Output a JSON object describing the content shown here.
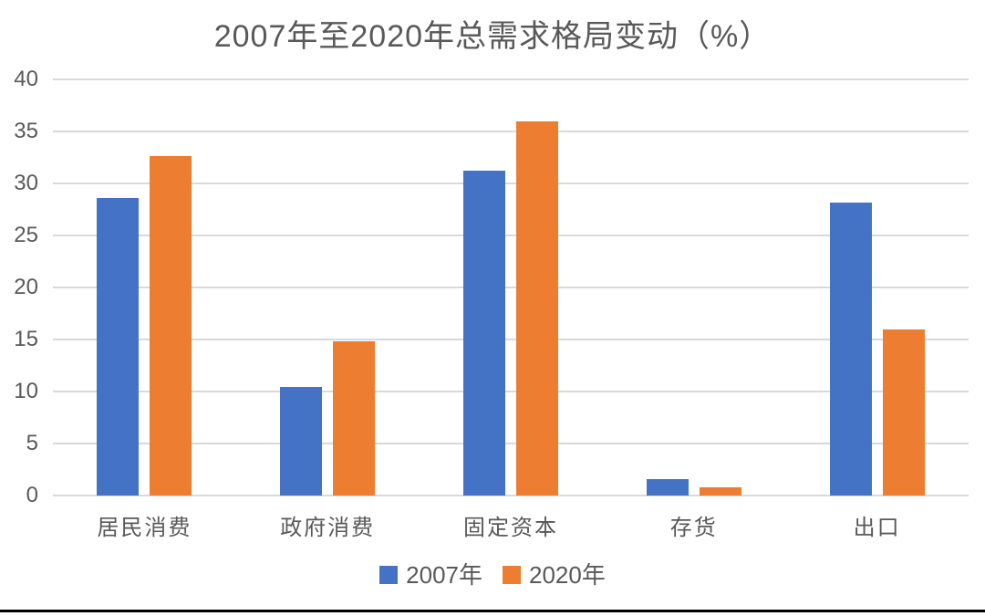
{
  "chart_data": {
    "type": "bar",
    "title": "2007年至2020年总需求格局变动（%）",
    "categories": [
      "居民消费",
      "政府消费",
      "固定资本",
      "存货",
      "出口"
    ],
    "series": [
      {
        "name": "2007年",
        "color": "#4472C4",
        "values": [
          28.6,
          10.4,
          31.2,
          1.6,
          28.2
        ]
      },
      {
        "name": "2020年",
        "color": "#ED7D31",
        "values": [
          32.6,
          14.8,
          36.0,
          0.8,
          16.0
        ]
      }
    ],
    "xlabel": "",
    "ylabel": "",
    "ylim": [
      0,
      40
    ],
    "yticks": [
      0,
      5,
      10,
      15,
      20,
      25,
      30,
      35,
      40
    ],
    "grid": true,
    "legend_position": "bottom"
  },
  "styles": {
    "title_color": "#595959",
    "axis_label_color": "#595959",
    "gridline_color": "#d9d9d9",
    "series1_color": "#4472C4",
    "series2_color": "#ED7D31",
    "bottom_line_color": "#000000"
  }
}
